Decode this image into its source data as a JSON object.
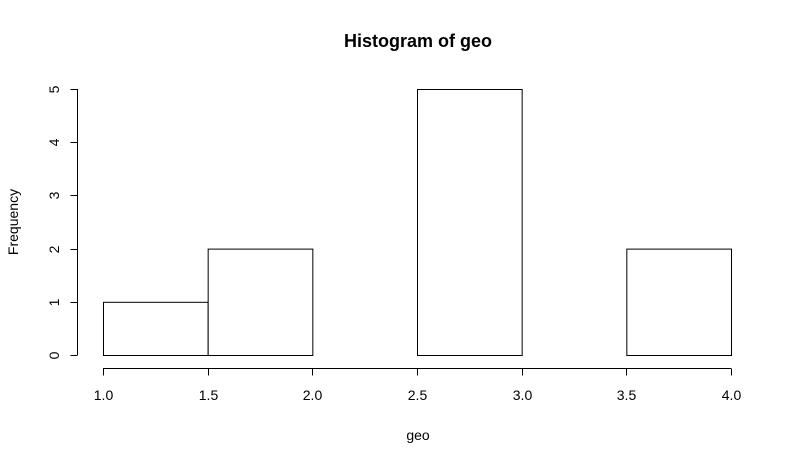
{
  "chart_data": {
    "type": "bar",
    "title": "Histogram of geo",
    "xlabel": "geo",
    "ylabel": "Frequency",
    "bins": [
      {
        "x0": 1.0,
        "x1": 1.5,
        "count": 1
      },
      {
        "x0": 1.5,
        "x1": 2.0,
        "count": 2
      },
      {
        "x0": 2.0,
        "x1": 2.5,
        "count": 0
      },
      {
        "x0": 2.5,
        "x1": 3.0,
        "count": 5
      },
      {
        "x0": 3.0,
        "x1": 3.5,
        "count": 0
      },
      {
        "x0": 3.5,
        "x1": 4.0,
        "count": 2
      }
    ],
    "xticks": [
      "1.0",
      "1.5",
      "2.0",
      "2.5",
      "3.0",
      "3.5",
      "4.0"
    ],
    "yticks": [
      "0",
      "1",
      "2",
      "3",
      "4",
      "5"
    ],
    "xlim": [
      1.0,
      4.0
    ],
    "ylim": [
      0,
      5
    ],
    "grid": false,
    "bar_fill": "#ffffff",
    "bar_stroke": "#000000"
  }
}
